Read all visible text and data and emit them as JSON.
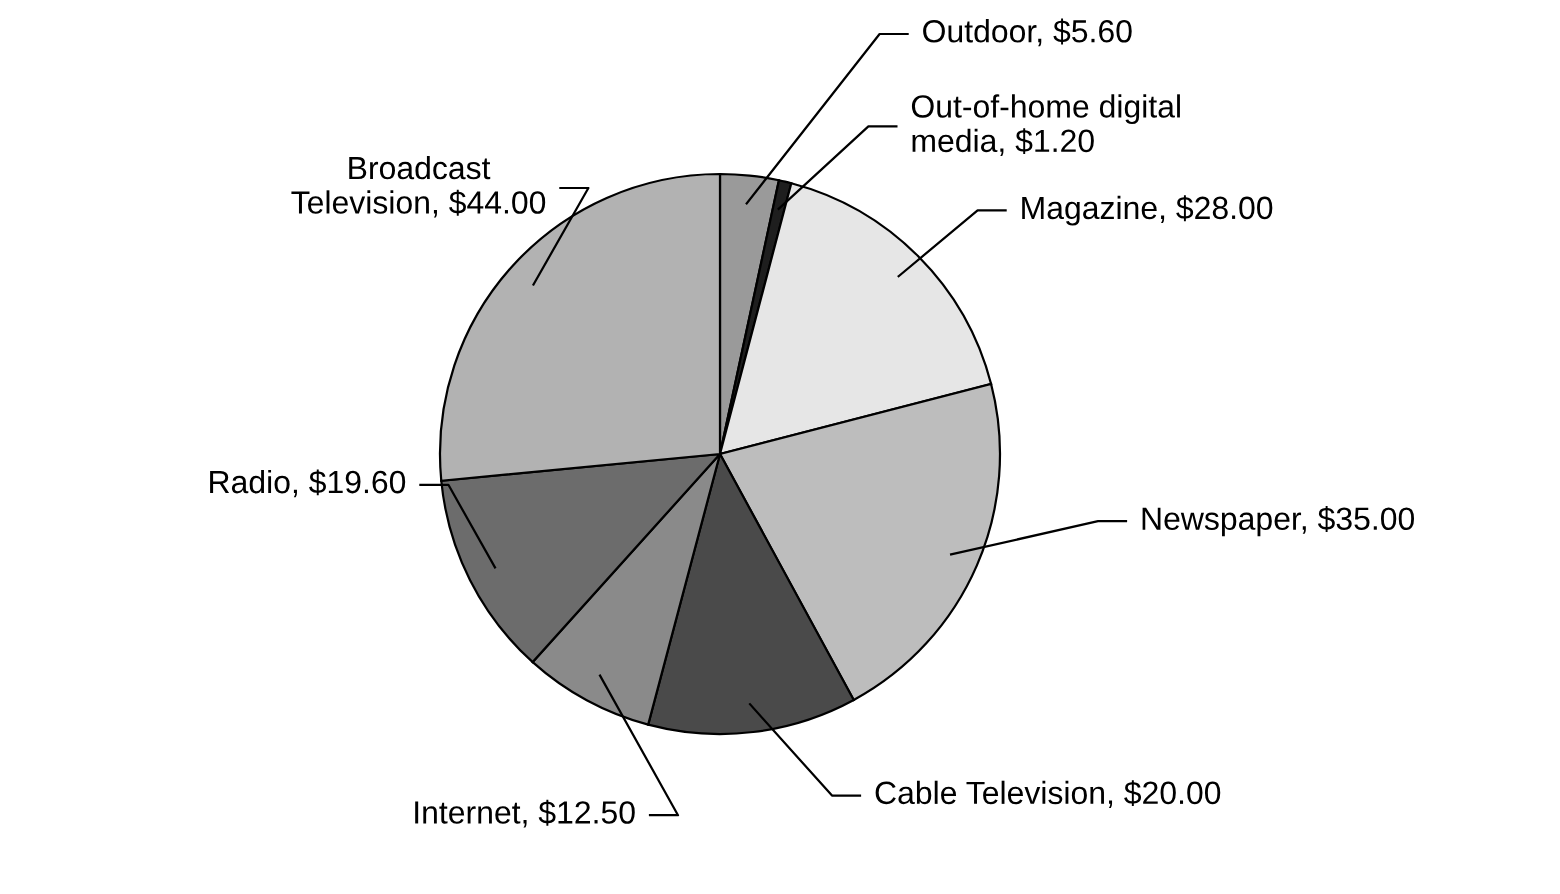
{
  "chart_data": {
    "type": "pie",
    "categories": [
      "Outdoor",
      "Out-of-home digital\nmedia",
      "Magazine",
      "Newspaper",
      "Cable Television",
      "Internet",
      "Radio",
      "Broadcast\nTelevision"
    ],
    "values": [
      5.6,
      1.2,
      28.0,
      35.0,
      20.0,
      12.5,
      19.6,
      44.0
    ],
    "value_labels": [
      "$5.60",
      "$1.20",
      "$28.00",
      "$35.00",
      "$20.00",
      "$12.50",
      "$19.60",
      "$44.00"
    ],
    "colors": [
      "#9a9a9a",
      "#1e1e1e",
      "#e6e6e6",
      "#bdbdbd",
      "#4a4a4a",
      "#8a8a8a",
      "#6c6c6c",
      "#b2b2b2"
    ]
  }
}
